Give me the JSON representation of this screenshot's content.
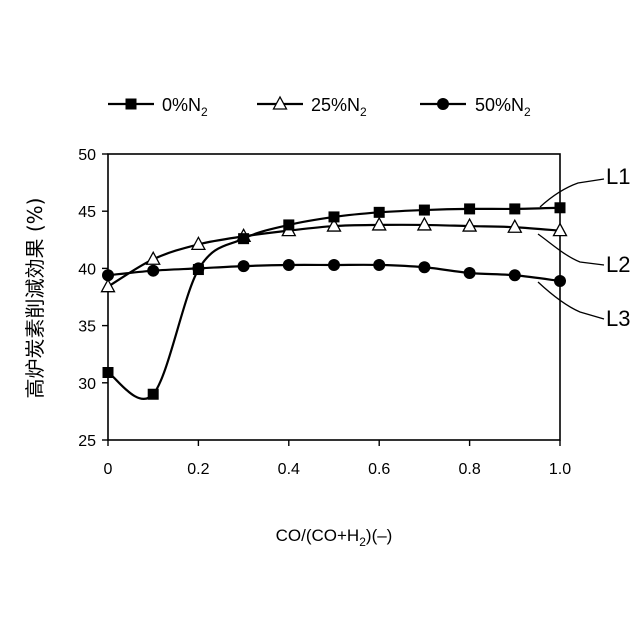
{
  "chart_data": {
    "type": "line",
    "xlabel_parts": [
      "CO/(CO+H",
      "2",
      ")(–)"
    ],
    "ylabel": "高炉炭素削減効果 (%)",
    "xlim": [
      0,
      1.0
    ],
    "ylim": [
      25,
      50
    ],
    "x_ticks": [
      "0",
      "0.2",
      "0.4",
      "0.6",
      "0.8",
      "1.0"
    ],
    "y_ticks": [
      "25",
      "30",
      "35",
      "40",
      "45",
      "50"
    ],
    "grid": false,
    "legend_position": "top",
    "x": [
      0,
      0.1,
      0.2,
      0.3,
      0.4,
      0.5,
      0.6,
      0.7,
      0.8,
      0.9,
      1.0
    ],
    "series": [
      {
        "name_main": "0%N",
        "name_sub": "2",
        "marker": "square",
        "callout": "L1",
        "values": [
          30.9,
          29.0,
          39.9,
          42.6,
          43.8,
          44.5,
          44.9,
          45.1,
          45.2,
          45.2,
          45.3
        ]
      },
      {
        "name_main": "25%N",
        "name_sub": "2",
        "marker": "triangle",
        "callout": "L2",
        "values": [
          38.4,
          40.8,
          42.1,
          42.8,
          43.3,
          43.7,
          43.8,
          43.8,
          43.7,
          43.6,
          43.3
        ]
      },
      {
        "name_main": "50%N",
        "name_sub": "2",
        "marker": "circle",
        "callout": "L3",
        "values": [
          39.4,
          39.8,
          40.0,
          40.2,
          40.3,
          40.3,
          40.3,
          40.1,
          39.6,
          39.4,
          38.9
        ]
      }
    ]
  }
}
